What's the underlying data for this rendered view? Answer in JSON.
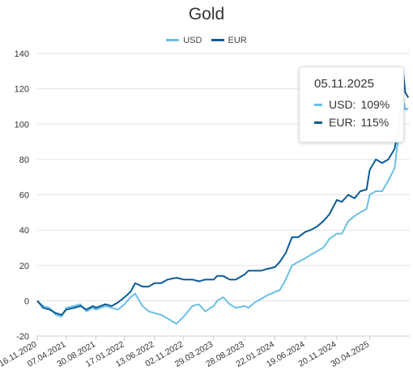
{
  "chart_data": {
    "type": "line",
    "title": "Gold",
    "xlabel": "",
    "ylabel": "",
    "ylim": [
      -20,
      140
    ],
    "yticks": [
      "140",
      "120",
      "100",
      "80",
      "60",
      "40",
      "20",
      "0",
      "-20"
    ],
    "xticks": [
      "16.11.2020",
      "07.04.2021",
      "30.08.2021",
      "17.01.2022",
      "13.06.2022",
      "02.11.2022",
      "29.03.2023",
      "28.08.2023",
      "22.01.2024",
      "19.06.2024",
      "20.11.2024",
      "30.04.2025"
    ],
    "grid": true,
    "legend_position": "top-center",
    "x": [
      "2020-11-16",
      "2020-12-15",
      "2021-01-15",
      "2021-02-15",
      "2021-03-15",
      "2021-04-07",
      "2021-05-15",
      "2021-06-15",
      "2021-07-15",
      "2021-08-15",
      "2021-08-30",
      "2021-10-15",
      "2021-11-15",
      "2021-12-15",
      "2022-01-17",
      "2022-02-15",
      "2022-03-10",
      "2022-04-15",
      "2022-05-15",
      "2022-06-13",
      "2022-07-15",
      "2022-08-15",
      "2022-09-28",
      "2022-11-02",
      "2022-12-15",
      "2023-01-15",
      "2023-02-15",
      "2023-03-29",
      "2023-04-15",
      "2023-05-15",
      "2023-06-15",
      "2023-07-15",
      "2023-08-28",
      "2023-09-15",
      "2023-10-15",
      "2023-11-15",
      "2023-12-15",
      "2024-01-22",
      "2024-02-15",
      "2024-03-15",
      "2024-04-15",
      "2024-05-15",
      "2024-06-19",
      "2024-07-15",
      "2024-08-15",
      "2024-09-15",
      "2024-10-15",
      "2024-11-20",
      "2024-12-15",
      "2025-01-15",
      "2025-02-15",
      "2025-03-15",
      "2025-04-15",
      "2025-04-30",
      "2025-05-30",
      "2025-06-30",
      "2025-07-30",
      "2025-08-30",
      "2025-09-20",
      "2025-10-10",
      "2025-10-21",
      "2025-11-05"
    ],
    "series": [
      {
        "name": "USD",
        "color": "#6cbfe6",
        "values": [
          0,
          -3,
          -4,
          -8,
          -9,
          -4,
          -3,
          -2,
          -6,
          -4,
          -5,
          -3,
          -4,
          -5,
          -2,
          2,
          4,
          -3,
          -6,
          -7,
          -8,
          -10,
          -13,
          -9,
          -3,
          -2,
          -6,
          -3,
          0,
          2,
          -2,
          -4,
          -3,
          -4,
          -1,
          1,
          3,
          5,
          6,
          12,
          20,
          22,
          24,
          26,
          28,
          30,
          35,
          38,
          38,
          45,
          48,
          50,
          52,
          60,
          62,
          62,
          68,
          75,
          95,
          115,
          108,
          109
        ]
      },
      {
        "name": "EUR",
        "color": "#0a5c96",
        "values": [
          0,
          -4,
          -5,
          -7,
          -8,
          -5,
          -4,
          -3,
          -5,
          -3,
          -4,
          -2,
          -3,
          -1,
          2,
          5,
          10,
          8,
          8,
          10,
          10,
          12,
          13,
          12,
          12,
          11,
          12,
          12,
          14,
          14,
          12,
          12,
          15,
          17,
          17,
          17,
          18,
          19,
          22,
          27,
          36,
          36,
          39,
          40,
          42,
          45,
          49,
          57,
          56,
          60,
          58,
          62,
          63,
          74,
          80,
          78,
          80,
          86,
          100,
          130,
          118,
          115
        ]
      }
    ]
  },
  "tooltip": {
    "date": "05.11.2025",
    "rows": [
      {
        "name": "USD:",
        "value": "109%",
        "color": "#6cbfe6"
      },
      {
        "name": "EUR:",
        "value": "115%",
        "color": "#0a5c96"
      }
    ]
  }
}
